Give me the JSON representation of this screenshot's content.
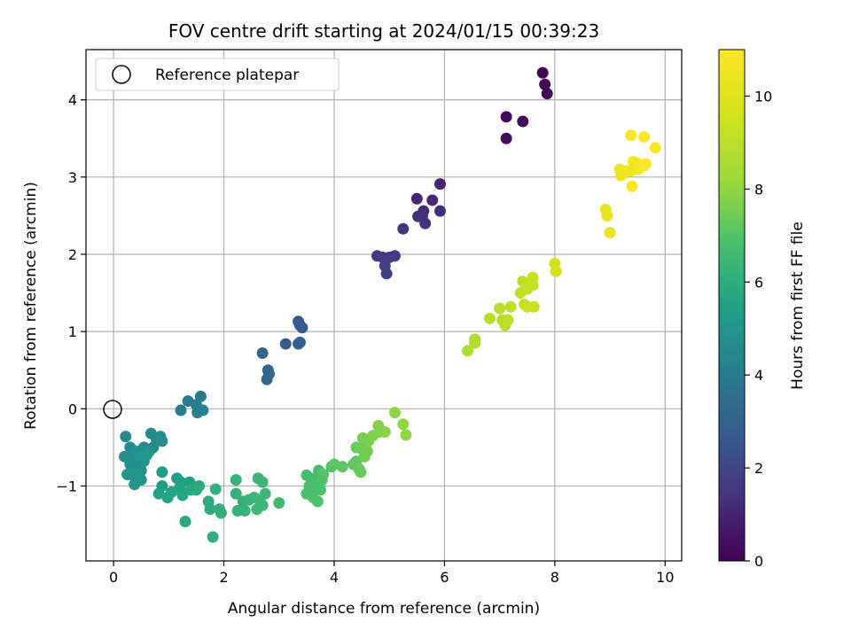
{
  "chart_data": {
    "type": "scatter",
    "title": "FOV centre drift starting at 2024/01/15 00:39:23",
    "xlabel": "Angular distance from reference (arcmin)",
    "ylabel": "Rotation from reference (arcmin)",
    "xlim": [
      -0.5,
      10.3
    ],
    "ylim": [
      -1.97,
      4.65
    ],
    "xticks": [
      0,
      2,
      4,
      6,
      8,
      10
    ],
    "yticks": [
      -1,
      0,
      1,
      2,
      3,
      4
    ],
    "grid": true,
    "legend": {
      "placement": "upper-left",
      "entries": [
        "Reference platepar"
      ]
    },
    "reference_point": {
      "x": 0,
      "y": 0
    },
    "colorbar": {
      "label": "Hours from first FF file",
      "colormap": "viridis",
      "range": [
        0,
        11
      ],
      "ticks": [
        0,
        2,
        4,
        6,
        8,
        10
      ]
    },
    "points": [
      {
        "x": 7.78,
        "y": 4.35,
        "h": 0.0
      },
      {
        "x": 7.82,
        "y": 4.2,
        "h": 0.05
      },
      {
        "x": 7.86,
        "y": 4.08,
        "h": 0.1
      },
      {
        "x": 7.12,
        "y": 3.78,
        "h": 0.2
      },
      {
        "x": 7.42,
        "y": 3.72,
        "h": 0.25
      },
      {
        "x": 7.12,
        "y": 3.5,
        "h": 0.3
      },
      {
        "x": 5.92,
        "y": 2.91,
        "h": 1.0
      },
      {
        "x": 5.5,
        "y": 2.72,
        "h": 1.05
      },
      {
        "x": 5.78,
        "y": 2.7,
        "h": 1.1
      },
      {
        "x": 5.62,
        "y": 2.56,
        "h": 1.15
      },
      {
        "x": 5.92,
        "y": 2.56,
        "h": 1.2
      },
      {
        "x": 5.52,
        "y": 2.49,
        "h": 1.25
      },
      {
        "x": 5.6,
        "y": 2.5,
        "h": 1.3
      },
      {
        "x": 5.65,
        "y": 2.4,
        "h": 1.35
      },
      {
        "x": 5.25,
        "y": 2.33,
        "h": 1.4
      },
      {
        "x": 4.78,
        "y": 1.98,
        "h": 1.6
      },
      {
        "x": 4.88,
        "y": 1.96,
        "h": 1.65
      },
      {
        "x": 5.0,
        "y": 1.96,
        "h": 1.7
      },
      {
        "x": 5.1,
        "y": 1.98,
        "h": 1.75
      },
      {
        "x": 4.92,
        "y": 1.85,
        "h": 1.8
      },
      {
        "x": 4.95,
        "y": 1.75,
        "h": 1.85
      },
      {
        "x": 3.35,
        "y": 1.13,
        "h": 2.6
      },
      {
        "x": 3.38,
        "y": 1.08,
        "h": 2.65
      },
      {
        "x": 3.42,
        "y": 1.05,
        "h": 2.7
      },
      {
        "x": 3.12,
        "y": 0.84,
        "h": 2.75
      },
      {
        "x": 3.35,
        "y": 0.84,
        "h": 2.8
      },
      {
        "x": 3.38,
        "y": 0.86,
        "h": 2.85
      },
      {
        "x": 2.7,
        "y": 0.72,
        "h": 3.1
      },
      {
        "x": 2.8,
        "y": 0.5,
        "h": 3.15
      },
      {
        "x": 2.82,
        "y": 0.45,
        "h": 3.2
      },
      {
        "x": 2.78,
        "y": 0.38,
        "h": 3.25
      },
      {
        "x": 1.58,
        "y": 0.16,
        "h": 3.9
      },
      {
        "x": 1.35,
        "y": 0.1,
        "h": 3.95
      },
      {
        "x": 1.5,
        "y": 0.05,
        "h": 4.0
      },
      {
        "x": 1.22,
        "y": -0.02,
        "h": 4.05
      },
      {
        "x": 1.62,
        "y": -0.02,
        "h": 4.05
      },
      {
        "x": 1.52,
        "y": -0.05,
        "h": 4.1
      },
      {
        "x": 0.22,
        "y": -0.36,
        "h": 4.5
      },
      {
        "x": 0.68,
        "y": -0.32,
        "h": 4.55
      },
      {
        "x": 0.85,
        "y": -0.36,
        "h": 4.6
      },
      {
        "x": 0.78,
        "y": -0.4,
        "h": 4.6
      },
      {
        "x": 0.3,
        "y": -0.5,
        "h": 4.65
      },
      {
        "x": 0.55,
        "y": -0.5,
        "h": 4.7
      },
      {
        "x": 0.72,
        "y": -0.5,
        "h": 4.7
      },
      {
        "x": 0.88,
        "y": -0.42,
        "h": 4.75
      },
      {
        "x": 0.4,
        "y": -0.55,
        "h": 4.75
      },
      {
        "x": 0.65,
        "y": -0.55,
        "h": 4.8
      },
      {
        "x": 0.2,
        "y": -0.62,
        "h": 4.8
      },
      {
        "x": 0.35,
        "y": -0.62,
        "h": 4.85
      },
      {
        "x": 0.45,
        "y": -0.65,
        "h": 4.85
      },
      {
        "x": 0.55,
        "y": -0.68,
        "h": 4.9
      },
      {
        "x": 0.3,
        "y": -0.72,
        "h": 4.9
      },
      {
        "x": 0.4,
        "y": -0.78,
        "h": 4.95
      },
      {
        "x": 0.5,
        "y": -0.8,
        "h": 4.95
      },
      {
        "x": 0.32,
        "y": -0.85,
        "h": 5.0
      },
      {
        "x": 0.42,
        "y": -0.88,
        "h": 5.0
      },
      {
        "x": 0.5,
        "y": -0.92,
        "h": 5.05
      },
      {
        "x": 0.38,
        "y": -0.98,
        "h": 5.05
      },
      {
        "x": 0.25,
        "y": -0.85,
        "h": 5.1
      },
      {
        "x": 0.48,
        "y": -0.62,
        "h": 5.1
      },
      {
        "x": 0.6,
        "y": -0.6,
        "h": 5.15
      },
      {
        "x": 0.88,
        "y": -0.82,
        "h": 5.3
      },
      {
        "x": 0.88,
        "y": -1.0,
        "h": 5.35
      },
      {
        "x": 1.15,
        "y": -0.9,
        "h": 5.4
      },
      {
        "x": 1.22,
        "y": -0.95,
        "h": 5.45
      },
      {
        "x": 1.38,
        "y": -0.95,
        "h": 5.5
      },
      {
        "x": 1.2,
        "y": -1.02,
        "h": 5.55
      },
      {
        "x": 0.82,
        "y": -1.1,
        "h": 5.6
      },
      {
        "x": 0.98,
        "y": -1.15,
        "h": 5.6
      },
      {
        "x": 1.05,
        "y": -1.08,
        "h": 5.65
      },
      {
        "x": 1.25,
        "y": -1.12,
        "h": 5.7
      },
      {
        "x": 1.4,
        "y": -1.05,
        "h": 5.75
      },
      {
        "x": 1.5,
        "y": -1.05,
        "h": 5.8
      },
      {
        "x": 1.55,
        "y": -1.0,
        "h": 5.85
      },
      {
        "x": 1.3,
        "y": -1.46,
        "h": 5.9
      },
      {
        "x": 1.72,
        "y": -1.2,
        "h": 6.0
      },
      {
        "x": 1.75,
        "y": -1.3,
        "h": 6.0
      },
      {
        "x": 1.85,
        "y": -1.04,
        "h": 6.05
      },
      {
        "x": 1.92,
        "y": -1.3,
        "h": 6.05
      },
      {
        "x": 1.95,
        "y": -1.35,
        "h": 6.1
      },
      {
        "x": 1.8,
        "y": -1.66,
        "h": 6.1
      },
      {
        "x": 2.22,
        "y": -0.92,
        "h": 6.2
      },
      {
        "x": 2.22,
        "y": -1.1,
        "h": 6.2
      },
      {
        "x": 2.35,
        "y": -1.2,
        "h": 6.25
      },
      {
        "x": 2.25,
        "y": -1.32,
        "h": 6.25
      },
      {
        "x": 2.38,
        "y": -1.32,
        "h": 6.3
      },
      {
        "x": 2.45,
        "y": -1.18,
        "h": 6.3
      },
      {
        "x": 2.62,
        "y": -0.9,
        "h": 6.35
      },
      {
        "x": 2.7,
        "y": -0.95,
        "h": 6.4
      },
      {
        "x": 2.55,
        "y": -1.15,
        "h": 6.4
      },
      {
        "x": 2.65,
        "y": -1.18,
        "h": 6.45
      },
      {
        "x": 2.75,
        "y": -1.1,
        "h": 6.45
      },
      {
        "x": 2.6,
        "y": -1.3,
        "h": 6.5
      },
      {
        "x": 2.7,
        "y": -1.25,
        "h": 6.5
      },
      {
        "x": 3.0,
        "y": -1.22,
        "h": 6.55
      },
      {
        "x": 3.5,
        "y": -0.86,
        "h": 6.7
      },
      {
        "x": 3.65,
        "y": -0.9,
        "h": 6.75
      },
      {
        "x": 3.72,
        "y": -0.8,
        "h": 6.75
      },
      {
        "x": 3.55,
        "y": -1.0,
        "h": 6.8
      },
      {
        "x": 3.6,
        "y": -1.05,
        "h": 6.8
      },
      {
        "x": 3.7,
        "y": -0.95,
        "h": 6.85
      },
      {
        "x": 3.5,
        "y": -1.1,
        "h": 6.85
      },
      {
        "x": 3.62,
        "y": -1.15,
        "h": 6.9
      },
      {
        "x": 3.75,
        "y": -1.05,
        "h": 6.9
      },
      {
        "x": 3.78,
        "y": -0.92,
        "h": 6.95
      },
      {
        "x": 3.7,
        "y": -1.2,
        "h": 6.95
      },
      {
        "x": 3.8,
        "y": -0.85,
        "h": 7.0
      },
      {
        "x": 3.95,
        "y": -0.75,
        "h": 7.05
      },
      {
        "x": 4.0,
        "y": -0.72,
        "h": 7.1
      },
      {
        "x": 4.15,
        "y": -0.75,
        "h": 7.15
      },
      {
        "x": 4.35,
        "y": -0.72,
        "h": 7.2
      },
      {
        "x": 4.4,
        "y": -0.68,
        "h": 7.25
      },
      {
        "x": 4.45,
        "y": -0.78,
        "h": 7.3
      },
      {
        "x": 4.48,
        "y": -0.82,
        "h": 7.35
      },
      {
        "x": 4.4,
        "y": -0.5,
        "h": 7.4
      },
      {
        "x": 4.5,
        "y": -0.52,
        "h": 7.45
      },
      {
        "x": 4.55,
        "y": -0.62,
        "h": 7.5
      },
      {
        "x": 4.6,
        "y": -0.55,
        "h": 7.55
      },
      {
        "x": 4.52,
        "y": -0.38,
        "h": 7.6
      },
      {
        "x": 4.62,
        "y": -0.42,
        "h": 7.65
      },
      {
        "x": 4.7,
        "y": -0.35,
        "h": 7.7
      },
      {
        "x": 4.8,
        "y": -0.22,
        "h": 7.75
      },
      {
        "x": 4.82,
        "y": -0.3,
        "h": 7.8
      },
      {
        "x": 4.92,
        "y": -0.3,
        "h": 7.85
      },
      {
        "x": 5.1,
        "y": -0.05,
        "h": 7.95
      },
      {
        "x": 5.25,
        "y": -0.2,
        "h": 8.0
      },
      {
        "x": 5.3,
        "y": -0.34,
        "h": 8.05
      },
      {
        "x": 6.42,
        "y": 0.75,
        "h": 8.6
      },
      {
        "x": 6.55,
        "y": 0.9,
        "h": 8.65
      },
      {
        "x": 6.55,
        "y": 0.85,
        "h": 8.7
      },
      {
        "x": 6.82,
        "y": 1.17,
        "h": 8.85
      },
      {
        "x": 7.0,
        "y": 1.3,
        "h": 8.9
      },
      {
        "x": 7.05,
        "y": 1.15,
        "h": 8.95
      },
      {
        "x": 7.1,
        "y": 1.08,
        "h": 9.0
      },
      {
        "x": 7.15,
        "y": 1.15,
        "h": 9.0
      },
      {
        "x": 7.2,
        "y": 1.32,
        "h": 9.05
      },
      {
        "x": 7.38,
        "y": 1.5,
        "h": 9.1
      },
      {
        "x": 7.42,
        "y": 1.65,
        "h": 9.15
      },
      {
        "x": 7.5,
        "y": 1.55,
        "h": 9.2
      },
      {
        "x": 7.6,
        "y": 1.6,
        "h": 9.25
      },
      {
        "x": 7.6,
        "y": 1.7,
        "h": 9.3
      },
      {
        "x": 7.45,
        "y": 1.35,
        "h": 9.3
      },
      {
        "x": 7.5,
        "y": 1.32,
        "h": 9.35
      },
      {
        "x": 7.62,
        "y": 1.32,
        "h": 9.4
      },
      {
        "x": 8.0,
        "y": 1.88,
        "h": 9.55
      },
      {
        "x": 8.02,
        "y": 1.78,
        "h": 9.6
      },
      {
        "x": 8.92,
        "y": 2.58,
        "h": 10.2
      },
      {
        "x": 8.95,
        "y": 2.5,
        "h": 10.25
      },
      {
        "x": 9.0,
        "y": 2.28,
        "h": 10.3
      },
      {
        "x": 9.18,
        "y": 3.1,
        "h": 10.45
      },
      {
        "x": 9.2,
        "y": 3.02,
        "h": 10.5
      },
      {
        "x": 9.3,
        "y": 3.08,
        "h": 10.55
      },
      {
        "x": 9.38,
        "y": 3.08,
        "h": 10.6
      },
      {
        "x": 9.42,
        "y": 3.2,
        "h": 10.65
      },
      {
        "x": 9.5,
        "y": 3.18,
        "h": 10.7
      },
      {
        "x": 9.52,
        "y": 3.1,
        "h": 10.75
      },
      {
        "x": 9.62,
        "y": 3.15,
        "h": 10.8
      },
      {
        "x": 9.38,
        "y": 3.54,
        "h": 10.85
      },
      {
        "x": 9.62,
        "y": 3.52,
        "h": 10.9
      },
      {
        "x": 9.82,
        "y": 3.38,
        "h": 10.95
      },
      {
        "x": 9.4,
        "y": 2.88,
        "h": 10.95
      },
      {
        "x": 9.65,
        "y": 3.17,
        "h": 11.0
      }
    ]
  }
}
